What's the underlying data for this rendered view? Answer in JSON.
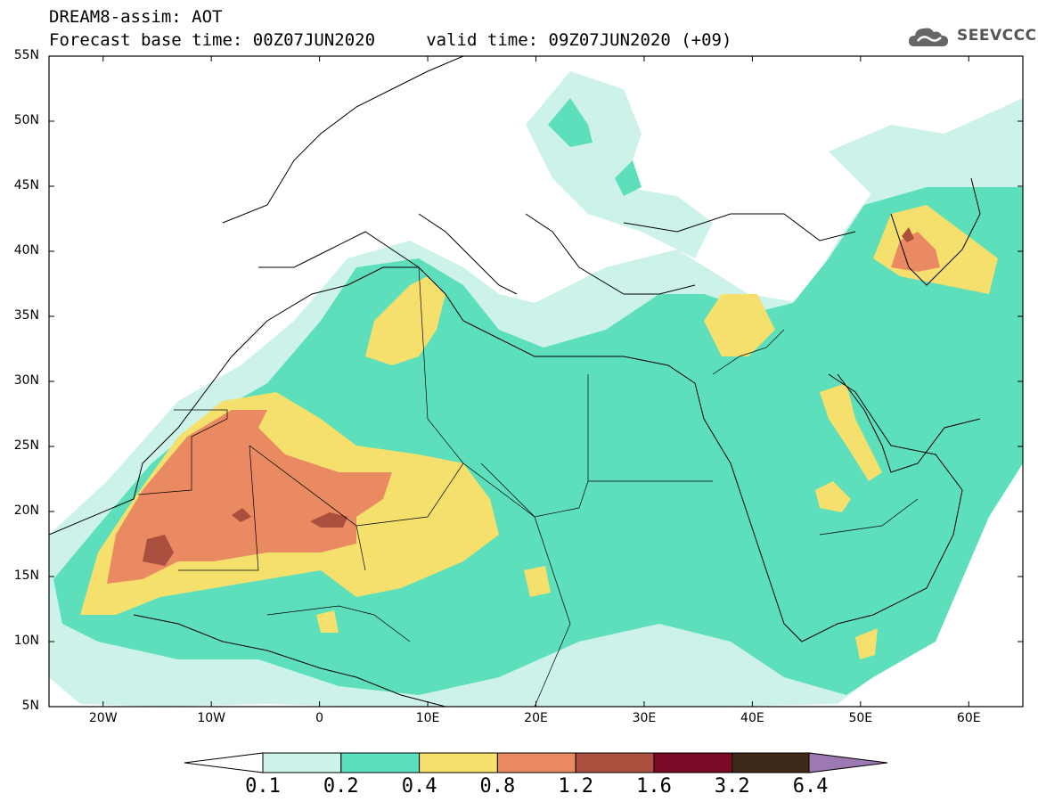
{
  "header": {
    "title_line1": "DREAM8-assim: AOT",
    "title_line2": "Forecast base time: 00Z07JUN2020     valid time: 09Z07JUN2020 (+09)",
    "logo_text": "SEEVCCC"
  },
  "map": {
    "lat_labels": [
      "55N",
      "50N",
      "45N",
      "40N",
      "35N",
      "30N",
      "25N",
      "20N",
      "15N",
      "10N",
      "5N"
    ],
    "lon_labels": [
      "20W",
      "10W",
      "0",
      "10E",
      "20E",
      "30E",
      "40E",
      "50E",
      "60E"
    ]
  },
  "legend": {
    "thresholds": [
      "0.1",
      "0.2",
      "0.4",
      "0.8",
      "1.2",
      "1.6",
      "3.2",
      "6.4"
    ],
    "colors": [
      "#cdf2ea",
      "#5ddfbb",
      "#f5e06d",
      "#ea8a63",
      "#aa4f3d",
      "#7a0a28",
      "#3e2a18",
      "#9e78b0"
    ],
    "undercolor": "#ffffff"
  }
}
